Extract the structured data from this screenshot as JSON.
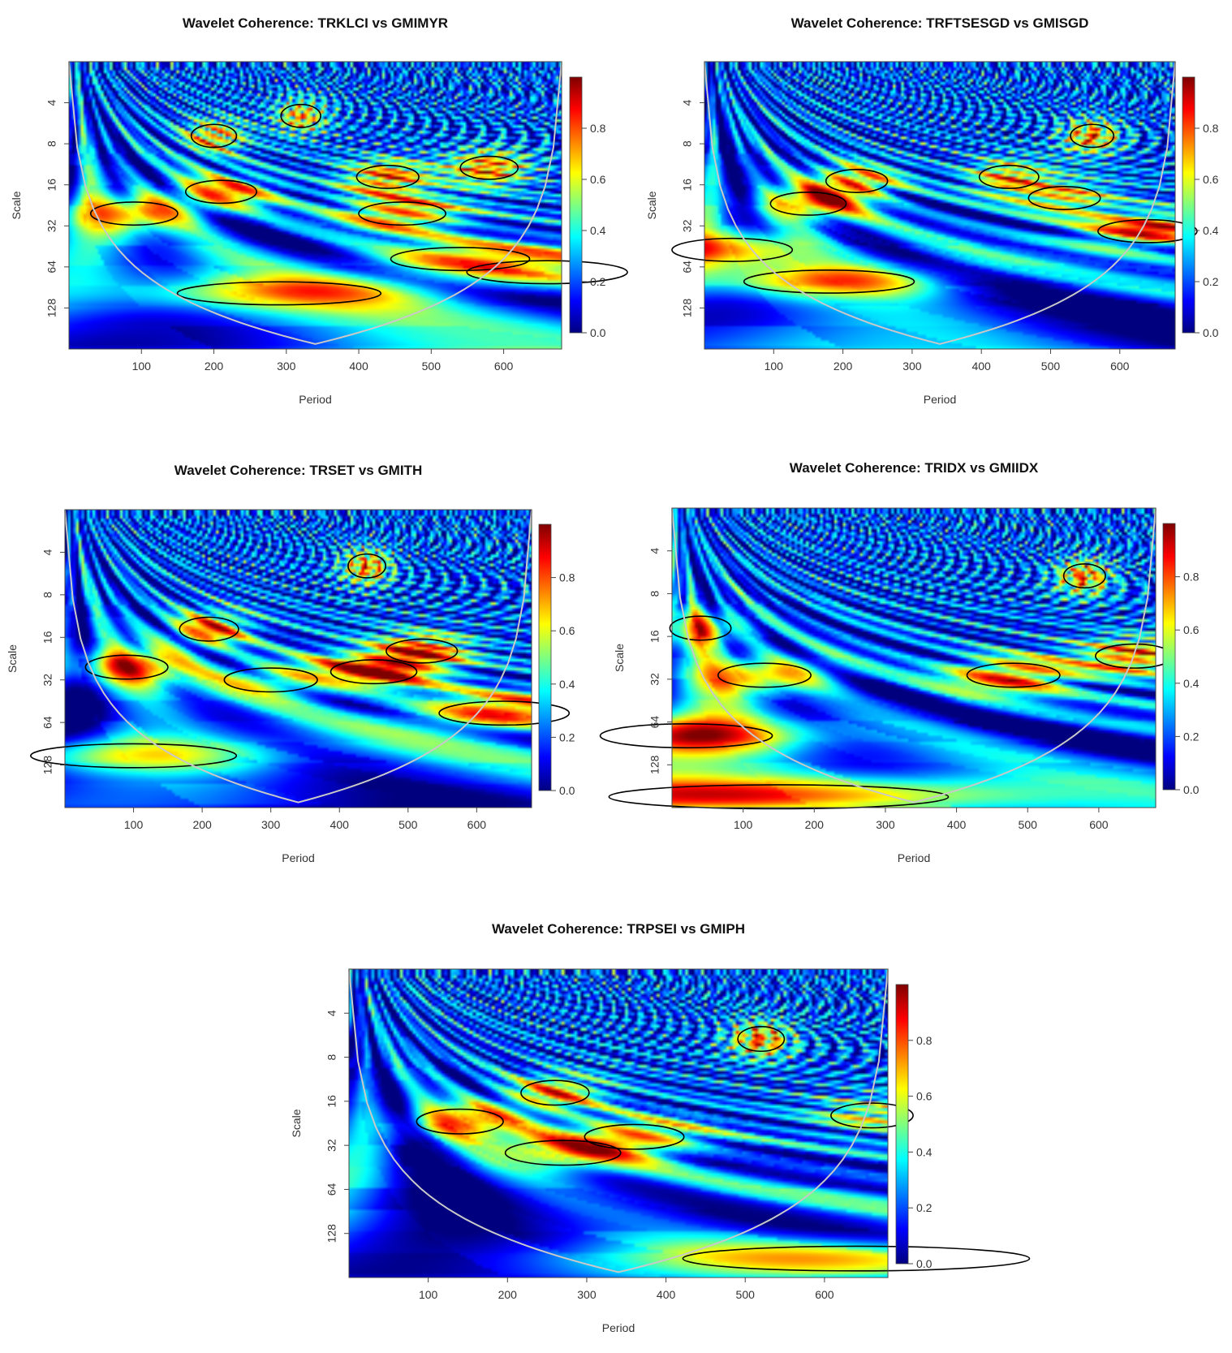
{
  "chart_data": [
    {
      "type": "heatmap",
      "title": "Wavelet Coherence: TRKLCI vs GMIMYR",
      "xlabel": "Period",
      "ylabel": "Scale",
      "xticks": [
        "100",
        "200",
        "300",
        "400",
        "500",
        "600"
      ],
      "yticks": [
        "4",
        "8",
        "16",
        "32",
        "64",
        "128"
      ],
      "colorbar_ticks": [
        "0.0",
        "0.2",
        "0.4",
        "0.6",
        "0.8"
      ],
      "xlim": [
        0,
        680
      ],
      "ylim": [
        2,
        256
      ],
      "y_scale": "log2, reversed",
      "zlim": [
        0,
        1
      ],
      "colormap": [
        "#00007f",
        "#0000ff",
        "#007fff",
        "#00ffff",
        "#7fff7f",
        "#ffff00",
        "#ff7f00",
        "#ff0000",
        "#7f0000"
      ],
      "hotspots": [
        {
          "x": 90,
          "y": 26,
          "v": 0.75
        },
        {
          "x": 210,
          "y": 18,
          "v": 0.75
        },
        {
          "x": 200,
          "y": 7,
          "v": 0.72
        },
        {
          "x": 320,
          "y": 5,
          "v": 0.7
        },
        {
          "x": 440,
          "y": 14,
          "v": 0.8
        },
        {
          "x": 460,
          "y": 26,
          "v": 0.8
        },
        {
          "x": 580,
          "y": 12,
          "v": 0.8
        },
        {
          "x": 290,
          "y": 100,
          "v": 0.65
        },
        {
          "x": 540,
          "y": 56,
          "v": 0.65
        },
        {
          "x": 660,
          "y": 70,
          "v": 0.6
        }
      ]
    },
    {
      "type": "heatmap",
      "title": "Wavelet Coherence: TRFTSESGD vs GMISGD",
      "xlabel": "Period",
      "ylabel": "Scale",
      "xticks": [
        "100",
        "200",
        "300",
        "400",
        "500",
        "600"
      ],
      "yticks": [
        "4",
        "8",
        "16",
        "32",
        "64",
        "128"
      ],
      "colorbar_ticks": [
        "0.0",
        "0.2",
        "0.4",
        "0.6",
        "0.8"
      ],
      "xlim": [
        0,
        680
      ],
      "ylim": [
        2,
        256
      ],
      "y_scale": "log2, reversed",
      "zlim": [
        0,
        1
      ],
      "colormap": [
        "#00007f",
        "#0000ff",
        "#007fff",
        "#00ffff",
        "#7fff7f",
        "#ffff00",
        "#ff7f00",
        "#ff0000",
        "#7f0000"
      ],
      "hotspots": [
        {
          "x": 150,
          "y": 22,
          "v": 0.8
        },
        {
          "x": 180,
          "y": 82,
          "v": 0.8
        },
        {
          "x": 220,
          "y": 15,
          "v": 0.75
        },
        {
          "x": 560,
          "y": 7,
          "v": 0.75
        },
        {
          "x": 440,
          "y": 14,
          "v": 0.7
        },
        {
          "x": 640,
          "y": 35,
          "v": 0.88
        },
        {
          "x": 40,
          "y": 48,
          "v": 0.8
        },
        {
          "x": 520,
          "y": 20,
          "v": 0.65
        }
      ]
    },
    {
      "type": "heatmap",
      "title": "Wavelet Coherence: TRSET vs GMITH",
      "xlabel": "Period",
      "ylabel": "Scale",
      "xticks": [
        "100",
        "200",
        "300",
        "400",
        "500",
        "600"
      ],
      "yticks": [
        "4",
        "8",
        "16",
        "32",
        "64",
        "128"
      ],
      "colorbar_ticks": [
        "0.0",
        "0.2",
        "0.4",
        "0.6",
        "0.8"
      ],
      "xlim": [
        0,
        680
      ],
      "ylim": [
        2,
        256
      ],
      "y_scale": "log2, reversed",
      "zlim": [
        0,
        1
      ],
      "colormap": [
        "#00007f",
        "#0000ff",
        "#007fff",
        "#00ffff",
        "#7fff7f",
        "#ffff00",
        "#ff7f00",
        "#ff0000",
        "#7f0000"
      ],
      "hotspots": [
        {
          "x": 90,
          "y": 26,
          "v": 0.82
        },
        {
          "x": 210,
          "y": 14,
          "v": 0.78
        },
        {
          "x": 450,
          "y": 28,
          "v": 0.85
        },
        {
          "x": 520,
          "y": 20,
          "v": 0.8
        },
        {
          "x": 640,
          "y": 55,
          "v": 0.9
        },
        {
          "x": 300,
          "y": 32,
          "v": 0.6
        },
        {
          "x": 100,
          "y": 110,
          "v": 0.65
        },
        {
          "x": 440,
          "y": 5,
          "v": 0.75
        }
      ]
    },
    {
      "type": "heatmap",
      "title": "Wavelet Coherence: TRIDX vs GMIIDX",
      "xlabel": "Period",
      "ylabel": "Scale",
      "xticks": [
        "100",
        "200",
        "300",
        "400",
        "500",
        "600"
      ],
      "yticks": [
        "4",
        "8",
        "16",
        "32",
        "64",
        "128"
      ],
      "colorbar_ticks": [
        "0.0",
        "0.2",
        "0.4",
        "0.6",
        "0.8"
      ],
      "xlim": [
        0,
        680
      ],
      "ylim": [
        2,
        256
      ],
      "y_scale": "log2, reversed",
      "zlim": [
        0,
        1
      ],
      "colormap": [
        "#00007f",
        "#0000ff",
        "#007fff",
        "#00ffff",
        "#7fff7f",
        "#ffff00",
        "#ff7f00",
        "#ff0000",
        "#7f0000"
      ],
      "hotspots": [
        {
          "x": 130,
          "y": 30,
          "v": 0.8
        },
        {
          "x": 480,
          "y": 30,
          "v": 0.85
        },
        {
          "x": 650,
          "y": 22,
          "v": 0.8
        },
        {
          "x": 150,
          "y": 215,
          "v": 0.85
        },
        {
          "x": 20,
          "y": 80,
          "v": 0.75
        },
        {
          "x": 580,
          "y": 6,
          "v": 0.75
        },
        {
          "x": 40,
          "y": 14,
          "v": 0.7
        }
      ]
    },
    {
      "type": "heatmap",
      "title": "Wavelet Coherence: TRPSEI vs GMIPH",
      "xlabel": "Period",
      "ylabel": "Scale",
      "xticks": [
        "100",
        "200",
        "300",
        "400",
        "500",
        "600"
      ],
      "yticks": [
        "4",
        "8",
        "16",
        "32",
        "64",
        "128"
      ],
      "colorbar_ticks": [
        "0.0",
        "0.2",
        "0.4",
        "0.6",
        "0.8"
      ],
      "xlim": [
        0,
        680
      ],
      "ylim": [
        2,
        256
      ],
      "y_scale": "log2, reversed",
      "zlim": [
        0,
        1
      ],
      "colormap": [
        "#00007f",
        "#0000ff",
        "#007fff",
        "#00ffff",
        "#7fff7f",
        "#ffff00",
        "#ff7f00",
        "#ff0000",
        "#7f0000"
      ],
      "hotspots": [
        {
          "x": 140,
          "y": 22,
          "v": 0.75
        },
        {
          "x": 260,
          "y": 14,
          "v": 0.72
        },
        {
          "x": 360,
          "y": 28,
          "v": 0.7
        },
        {
          "x": 270,
          "y": 36,
          "v": 0.65
        },
        {
          "x": 640,
          "y": 190,
          "v": 0.7
        },
        {
          "x": 660,
          "y": 20,
          "v": 0.6
        },
        {
          "x": 520,
          "y": 6,
          "v": 0.75
        }
      ]
    }
  ]
}
